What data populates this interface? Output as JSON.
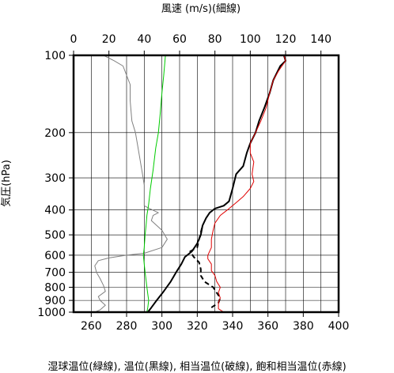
{
  "chart_data": {
    "type": "line",
    "top_axis_label": "風速 (m/s)(細線)",
    "top_ticks": [
      0,
      20,
      40,
      60,
      80,
      100,
      120,
      140
    ],
    "top_range": [
      0,
      150
    ],
    "bottom_axis_label": "湿球温位(緑線), 温位(黒線), 相当温位(破線), 飽和相当温位(赤線)",
    "bottom_ticks": [
      260,
      280,
      300,
      320,
      340,
      360,
      380,
      400
    ],
    "bottom_range": [
      250,
      400
    ],
    "ylabel": "気圧(hPa)",
    "y_ticks": [
      100,
      200,
      300,
      400,
      500,
      600,
      700,
      800,
      900,
      1000
    ],
    "y_range": [
      100,
      1000
    ],
    "y_scale": "log",
    "vertical_grid_step": 10,
    "series": [
      {
        "color": "#808080",
        "axis": "top",
        "points": [
          [
            12,
            1000
          ],
          [
            15,
            980
          ],
          [
            18,
            940
          ],
          [
            15,
            900
          ],
          [
            14,
            870
          ],
          [
            18,
            830
          ],
          [
            17,
            790
          ],
          [
            15,
            740
          ],
          [
            13,
            700
          ],
          [
            12,
            660
          ],
          [
            14,
            630
          ],
          [
            20,
            615
          ],
          [
            30,
            600
          ],
          [
            40,
            590
          ],
          [
            50,
            560
          ],
          [
            53,
            520
          ],
          [
            50,
            480
          ],
          [
            44,
            440
          ],
          [
            45,
            420
          ],
          [
            48,
            410
          ],
          [
            43,
            395
          ],
          [
            40,
            385
          ],
          [
            40,
            360
          ],
          [
            40,
            320
          ],
          [
            39,
            290
          ],
          [
            37,
            240
          ],
          [
            35,
            200
          ],
          [
            33,
            180
          ],
          [
            32,
            150
          ],
          [
            32,
            130
          ],
          [
            28,
            110
          ],
          [
            23,
            105
          ],
          [
            17,
            100
          ]
        ]
      },
      {
        "color": "#00cc00",
        "axis": "bottom",
        "points": [
          [
            291.5,
            1000
          ],
          [
            292,
            960
          ],
          [
            292.5,
            900
          ],
          [
            292,
            850
          ],
          [
            291.5,
            800
          ],
          [
            291,
            750
          ],
          [
            290.5,
            700
          ],
          [
            290,
            650
          ],
          [
            289.5,
            600
          ],
          [
            290,
            560
          ],
          [
            290.5,
            500
          ],
          [
            291,
            460
          ],
          [
            291.5,
            420
          ],
          [
            292.5,
            380
          ],
          [
            293.5,
            330
          ],
          [
            295,
            280
          ],
          [
            296.5,
            230
          ],
          [
            298,
            200
          ],
          [
            299,
            170
          ],
          [
            300,
            140
          ],
          [
            301,
            120
          ],
          [
            302,
            100
          ]
        ]
      },
      {
        "color": "#000000",
        "axis": "bottom",
        "points": [
          [
            292,
            1000
          ],
          [
            294,
            960
          ],
          [
            297,
            900
          ],
          [
            301,
            830
          ],
          [
            305,
            760
          ],
          [
            308,
            700
          ],
          [
            311,
            650
          ],
          [
            313,
            610
          ],
          [
            317,
            580
          ],
          [
            320,
            540
          ],
          [
            322,
            500
          ],
          [
            323,
            460
          ],
          [
            325,
            430
          ],
          [
            327,
            410
          ],
          [
            330,
            395
          ],
          [
            335,
            385
          ],
          [
            338,
            370
          ],
          [
            340,
            330
          ],
          [
            342,
            290
          ],
          [
            346,
            270
          ],
          [
            348,
            240
          ],
          [
            350,
            220
          ],
          [
            353,
            200
          ],
          [
            355,
            180
          ],
          [
            358,
            160
          ],
          [
            361,
            140
          ],
          [
            363,
            125
          ],
          [
            367,
            110
          ],
          [
            370,
            105
          ],
          [
            369,
            100
          ]
        ]
      },
      {
        "color": "#000000",
        "axis": "bottom",
        "dashed": true,
        "points": [
          [
            328,
            960
          ],
          [
            332,
            920
          ],
          [
            333,
            880
          ],
          [
            331,
            840
          ],
          [
            329,
            800
          ],
          [
            324,
            760
          ],
          [
            322,
            720
          ],
          [
            322,
            680
          ],
          [
            321,
            640
          ],
          [
            318,
            610
          ],
          [
            316,
            580
          ],
          [
            320,
            560
          ],
          [
            321,
            520
          ],
          [
            322,
            490
          ],
          [
            323,
            460
          ]
        ]
      },
      {
        "color": "#e00000",
        "axis": "bottom",
        "points": [
          [
            335,
            1000
          ],
          [
            332,
            970
          ],
          [
            332,
            920
          ],
          [
            333,
            880
          ],
          [
            332,
            840
          ],
          [
            333,
            800
          ],
          [
            331,
            760
          ],
          [
            330,
            720
          ],
          [
            328,
            690
          ],
          [
            328,
            650
          ],
          [
            326,
            620
          ],
          [
            326,
            600
          ],
          [
            328,
            560
          ],
          [
            328,
            520
          ],
          [
            329,
            480
          ],
          [
            330,
            450
          ],
          [
            333,
            420
          ],
          [
            337,
            400
          ],
          [
            341,
            380
          ],
          [
            346,
            355
          ],
          [
            350,
            330
          ],
          [
            352,
            310
          ],
          [
            351,
            290
          ],
          [
            352,
            260
          ],
          [
            350,
            240
          ],
          [
            350,
            220
          ],
          [
            353,
            200
          ],
          [
            356,
            180
          ],
          [
            359,
            160
          ],
          [
            361,
            140
          ],
          [
            363,
            125
          ],
          [
            366,
            115
          ],
          [
            370,
            105
          ],
          [
            369,
            100
          ]
        ]
      }
    ]
  }
}
